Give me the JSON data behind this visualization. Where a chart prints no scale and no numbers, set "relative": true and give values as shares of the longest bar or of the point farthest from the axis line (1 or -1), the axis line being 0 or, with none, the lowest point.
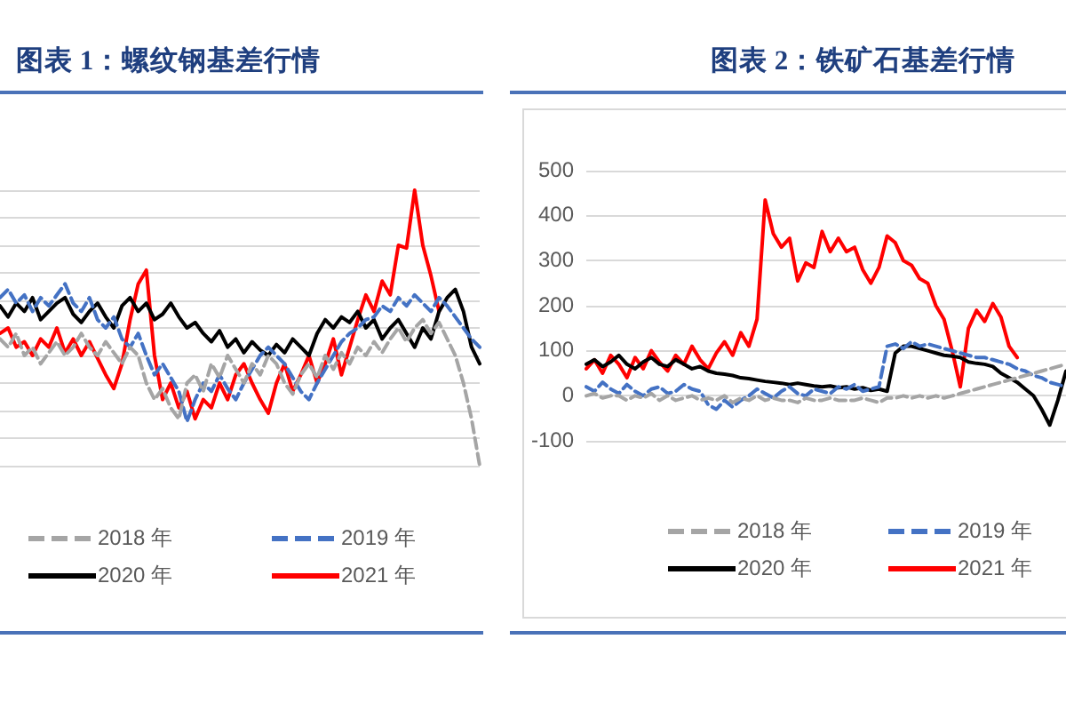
{
  "chart_data": [
    {
      "type": "line",
      "title": "图表 1：螺纹钢基差行情",
      "relative": true,
      "grid": "y",
      "legend": "bottom",
      "tick_labels": false,
      "marker": "none",
      "categories": [
        null,
        null,
        null,
        null,
        null,
        null,
        null,
        null,
        null,
        null,
        null,
        null,
        null,
        null,
        null,
        null,
        null,
        null,
        null,
        null,
        null,
        null,
        null,
        null,
        null,
        null,
        null,
        null,
        null,
        null,
        null,
        null,
        null,
        null,
        null,
        null,
        null,
        null,
        null,
        null,
        null,
        null,
        null,
        null,
        null,
        null,
        null,
        null,
        null,
        null,
        null,
        null,
        null,
        null,
        null,
        null,
        null,
        null,
        null,
        null
      ],
      "series": [
        {
          "name": "2018 年",
          "color": "#a5a5a5",
          "line_style": "dashed",
          "values": [
            0.46,
            0.43,
            0.48,
            0.4,
            0.43,
            0.37,
            0.41,
            0.45,
            0.4,
            0.43,
            0.48,
            0.43,
            0.4,
            0.45,
            0.41,
            0.37,
            0.43,
            0.4,
            0.3,
            0.24,
            0.28,
            0.21,
            0.17,
            0.3,
            0.33,
            0.27,
            0.37,
            0.32,
            0.4,
            0.35,
            0.3,
            0.37,
            0.33,
            0.4,
            0.37,
            0.3,
            0.26,
            0.33,
            0.37,
            0.32,
            0.4,
            0.35,
            0.41,
            0.37,
            0.43,
            0.4,
            0.45,
            0.41,
            0.46,
            0.5,
            0.45,
            0.5,
            0.53,
            0.48,
            0.52,
            0.46,
            0.4,
            0.3,
            0.17,
            0
          ]
        },
        {
          "name": "2019 年",
          "color": "#4472c4",
          "line_style": "dashed",
          "values": [
            0.61,
            0.64,
            0.59,
            0.62,
            0.56,
            0.61,
            0.58,
            0.62,
            0.66,
            0.59,
            0.56,
            0.61,
            0.53,
            0.5,
            0.54,
            0.46,
            0.43,
            0.48,
            0.4,
            0.33,
            0.37,
            0.32,
            0.27,
            0.16,
            0.24,
            0.3,
            0.27,
            0.33,
            0.28,
            0.24,
            0.3,
            0.35,
            0.4,
            0.43,
            0.4,
            0.37,
            0.32,
            0.27,
            0.24,
            0.3,
            0.35,
            0.4,
            0.45,
            0.48,
            0.5,
            0.53,
            0.54,
            0.58,
            0.56,
            0.61,
            0.58,
            0.62,
            0.59,
            0.56,
            0.61,
            0.58,
            0.54,
            0.5,
            0.46,
            0.43
          ]
        },
        {
          "name": "2020 年",
          "color": "#000000",
          "line_style": "solid",
          "values": [
            0.58,
            0.54,
            0.59,
            0.56,
            0.61,
            0.53,
            0.56,
            0.59,
            0.61,
            0.55,
            0.52,
            0.56,
            0.59,
            0.54,
            0.5,
            0.58,
            0.61,
            0.56,
            0.59,
            0.53,
            0.55,
            0.59,
            0.54,
            0.5,
            0.52,
            0.48,
            0.45,
            0.49,
            0.43,
            0.46,
            0.41,
            0.45,
            0.42,
            0.4,
            0.44,
            0.41,
            0.46,
            0.43,
            0.4,
            0.48,
            0.53,
            0.5,
            0.54,
            0.52,
            0.56,
            0.5,
            0.53,
            0.46,
            0.5,
            0.53,
            0.48,
            0.43,
            0.5,
            0.46,
            0.56,
            0.61,
            0.64,
            0.56,
            0.43,
            0.37
          ]
        },
        {
          "name": "2021 年",
          "color": "#ff0000",
          "line_style": "solid",
          "values": [
            0.48,
            0.5,
            0.43,
            0.45,
            0.4,
            0.46,
            0.43,
            0.5,
            0.41,
            0.46,
            0.4,
            0.45,
            0.39,
            0.33,
            0.28,
            0.37,
            0.53,
            0.66,
            0.71,
            0.4,
            0.24,
            0.3,
            0.21,
            0.27,
            0.17,
            0.24,
            0.21,
            0.3,
            0.24,
            0.33,
            0.37,
            0.3,
            0.24,
            0.19,
            0.3,
            0.37,
            0.27,
            0.33,
            0.4,
            0.3,
            0.37,
            0.46,
            0.33,
            0.43,
            0.53,
            0.62,
            0.56,
            0.67,
            0.62,
            0.8,
            0.79,
            1,
            0.8,
            0.69,
            0.56,
            null,
            null,
            null,
            null,
            null
          ]
        }
      ]
    },
    {
      "type": "line",
      "title": "图表 2：铁矿石基差行情",
      "ylim": [
        -100,
        500
      ],
      "yticks": [
        -100,
        0,
        100,
        200,
        300,
        400,
        500
      ],
      "grid": "y",
      "legend": "bottom",
      "tick_labels": "y",
      "marker": "none",
      "categories": [
        null,
        null,
        null,
        null,
        null,
        null,
        null,
        null,
        null,
        null,
        null,
        null,
        null,
        null,
        null,
        null,
        null,
        null,
        null,
        null,
        null,
        null,
        null,
        null,
        null,
        null,
        null,
        null,
        null,
        null,
        null,
        null,
        null,
        null,
        null,
        null,
        null,
        null,
        null,
        null,
        null,
        null,
        null,
        null,
        null,
        null,
        null,
        null,
        null,
        null,
        null,
        null,
        null,
        null,
        null,
        null,
        null,
        null,
        null,
        null
      ],
      "series": [
        {
          "name": "2018 年",
          "color": "#a5a5a5",
          "line_style": "dashed",
          "values": [
            0,
            5,
            -5,
            0,
            0,
            -10,
            0,
            -5,
            5,
            -10,
            0,
            -10,
            -5,
            0,
            -10,
            -5,
            -10,
            0,
            -15,
            -5,
            -10,
            0,
            -10,
            -5,
            -10,
            -10,
            -15,
            -5,
            -10,
            -10,
            -5,
            -10,
            -10,
            -10,
            -5,
            -10,
            -15,
            -5,
            -5,
            0,
            -5,
            0,
            -5,
            0,
            -5,
            0,
            5,
            10,
            15,
            20,
            25,
            30,
            35,
            40,
            45,
            50,
            55,
            60,
            65,
            70
          ]
        },
        {
          "name": "2019 年",
          "color": "#4472c4",
          "line_style": "dashed",
          "values": [
            20,
            10,
            30,
            15,
            5,
            25,
            10,
            0,
            15,
            20,
            5,
            10,
            25,
            15,
            10,
            -20,
            -30,
            -10,
            -25,
            -10,
            0,
            15,
            5,
            -5,
            10,
            20,
            5,
            0,
            15,
            10,
            5,
            20,
            15,
            25,
            10,
            15,
            20,
            110,
            115,
            105,
            120,
            110,
            115,
            110,
            105,
            100,
            95,
            90,
            85,
            85,
            80,
            75,
            70,
            60,
            55,
            45,
            40,
            30,
            25,
            20
          ]
        },
        {
          "name": "2020 年",
          "color": "#000000",
          "line_style": "solid",
          "values": [
            70,
            80,
            65,
            75,
            90,
            70,
            60,
            75,
            85,
            70,
            65,
            80,
            70,
            60,
            65,
            55,
            50,
            48,
            45,
            40,
            38,
            35,
            32,
            30,
            28,
            25,
            28,
            25,
            22,
            20,
            22,
            18,
            20,
            15,
            18,
            12,
            15,
            10,
            95,
            110,
            110,
            105,
            100,
            95,
            90,
            88,
            85,
            75,
            72,
            70,
            65,
            50,
            40,
            30,
            15,
            0,
            -30,
            -65,
            -10,
            55
          ]
        },
        {
          "name": "2021 年",
          "color": "#ff0000",
          "line_style": "solid",
          "values": [
            60,
            80,
            50,
            90,
            70,
            40,
            85,
            60,
            100,
            75,
            55,
            90,
            70,
            110,
            80,
            60,
            95,
            120,
            90,
            140,
            110,
            170,
            435,
            360,
            330,
            350,
            255,
            295,
            285,
            365,
            320,
            350,
            320,
            330,
            280,
            250,
            285,
            355,
            340,
            300,
            290,
            260,
            250,
            200,
            170,
            100,
            20,
            150,
            190,
            165,
            205,
            175,
            110,
            85,
            null,
            null,
            null,
            null,
            null,
            null
          ]
        }
      ]
    }
  ]
}
